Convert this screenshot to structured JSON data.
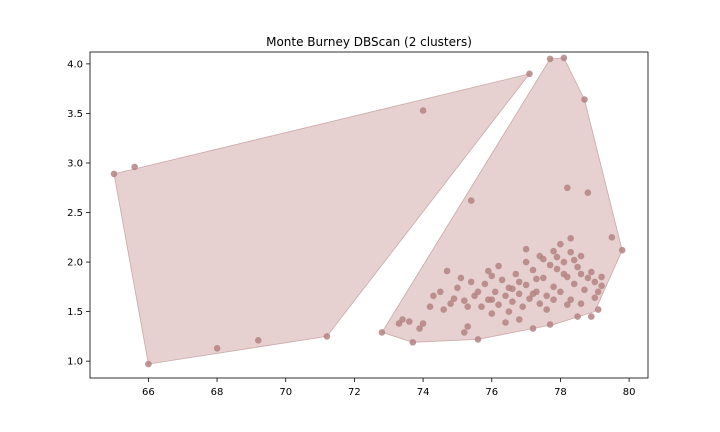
{
  "chart_data": {
    "type": "scatter",
    "title": "Monte Burney DBScan (2 clusters)",
    "xlabel": "",
    "ylabel": "",
    "xlim": [
      64.3,
      80.55
    ],
    "ylim": [
      0.83,
      4.12
    ],
    "xticks": [
      66,
      68,
      70,
      72,
      74,
      76,
      78,
      80
    ],
    "yticks": [
      1.0,
      1.5,
      2.0,
      2.5,
      3.0,
      3.5,
      4.0
    ],
    "xtick_labels": [
      "66",
      "68",
      "70",
      "72",
      "74",
      "76",
      "78",
      "80"
    ],
    "ytick_labels": [
      "1.0",
      "1.5",
      "2.0",
      "2.5",
      "3.0",
      "3.5",
      "4.0"
    ],
    "grid": false,
    "legend": "none",
    "colors": {
      "point": "#b48282",
      "hull_fill": "#c89696",
      "hull_stroke": "#b48282"
    },
    "clusters": [
      {
        "hull": [
          [
            65.0,
            2.89
          ],
          [
            77.1,
            3.9
          ],
          [
            71.2,
            1.25
          ],
          [
            66.0,
            0.97
          ]
        ],
        "points": [
          [
            65.0,
            2.89
          ],
          [
            65.6,
            2.96
          ],
          [
            66.0,
            0.97
          ],
          [
            68.0,
            1.13
          ],
          [
            69.2,
            1.21
          ],
          [
            71.2,
            1.25
          ],
          [
            74.0,
            3.53
          ],
          [
            77.1,
            3.9
          ]
        ]
      },
      {
        "hull": [
          [
            72.8,
            1.29
          ],
          [
            73.7,
            1.19
          ],
          [
            75.6,
            1.22
          ],
          [
            77.8,
            1.37
          ],
          [
            79.0,
            1.5
          ],
          [
            79.8,
            2.12
          ],
          [
            78.7,
            3.64
          ],
          [
            78.1,
            4.06
          ],
          [
            77.7,
            4.05
          ]
        ],
        "points": [
          [
            77.7,
            4.05
          ],
          [
            78.1,
            4.06
          ],
          [
            78.7,
            3.64
          ],
          [
            75.4,
            2.62
          ],
          [
            78.2,
            2.75
          ],
          [
            78.8,
            2.7
          ],
          [
            79.8,
            2.12
          ],
          [
            79.5,
            2.25
          ],
          [
            72.8,
            1.29
          ],
          [
            73.3,
            1.38
          ],
          [
            73.4,
            1.42
          ],
          [
            73.6,
            1.4
          ],
          [
            73.7,
            1.19
          ],
          [
            73.9,
            1.33
          ],
          [
            74.0,
            1.38
          ],
          [
            74.2,
            1.55
          ],
          [
            74.3,
            1.66
          ],
          [
            74.7,
            1.91
          ],
          [
            75.6,
            1.22
          ],
          [
            75.3,
            1.35
          ],
          [
            75.2,
            1.29
          ],
          [
            76.0,
            1.48
          ],
          [
            76.4,
            1.39
          ],
          [
            76.8,
            1.42
          ],
          [
            77.2,
            1.33
          ],
          [
            77.7,
            1.37
          ],
          [
            78.5,
            1.45
          ],
          [
            78.9,
            1.45
          ],
          [
            79.1,
            1.52
          ],
          [
            77.0,
            2.13
          ],
          [
            77.5,
            2.03
          ],
          [
            78.0,
            2.18
          ],
          [
            78.3,
            2.24
          ],
          [
            77.8,
            1.62
          ],
          [
            78.2,
            1.57
          ],
          [
            78.6,
            1.88
          ],
          [
            79.0,
            1.64
          ],
          [
            79.2,
            1.76
          ],
          [
            74.5,
            1.7
          ],
          [
            74.8,
            1.58
          ],
          [
            75.0,
            1.74
          ],
          [
            75.2,
            1.61
          ],
          [
            75.5,
            1.66
          ],
          [
            75.7,
            1.55
          ],
          [
            75.8,
            1.78
          ],
          [
            76.0,
            1.62
          ],
          [
            76.1,
            1.7
          ],
          [
            76.2,
            1.57
          ],
          [
            76.3,
            1.82
          ],
          [
            76.4,
            1.66
          ],
          [
            76.5,
            1.74
          ],
          [
            76.6,
            1.6
          ],
          [
            76.7,
            1.88
          ],
          [
            76.8,
            1.68
          ],
          [
            76.9,
            1.55
          ],
          [
            77.0,
            1.77
          ],
          [
            77.1,
            1.63
          ],
          [
            77.2,
            1.92
          ],
          [
            77.3,
            1.7
          ],
          [
            77.4,
            1.58
          ],
          [
            77.5,
            1.84
          ],
          [
            77.6,
            1.66
          ],
          [
            77.7,
            1.97
          ],
          [
            77.8,
            1.75
          ],
          [
            77.9,
            2.05
          ],
          [
            78.0,
            1.7
          ],
          [
            78.1,
            2.0
          ],
          [
            78.2,
            1.85
          ],
          [
            78.3,
            2.1
          ],
          [
            78.4,
            1.78
          ],
          [
            78.5,
            1.95
          ],
          [
            78.6,
            2.06
          ],
          [
            78.7,
            1.72
          ],
          [
            78.8,
            1.84
          ],
          [
            78.9,
            1.9
          ],
          [
            79.0,
            1.8
          ],
          [
            79.2,
            1.85
          ],
          [
            75.9,
            1.91
          ],
          [
            76.2,
            1.96
          ],
          [
            75.1,
            1.84
          ],
          [
            74.9,
            1.63
          ],
          [
            74.6,
            1.52
          ],
          [
            75.4,
            1.8
          ],
          [
            76.0,
            1.86
          ],
          [
            77.0,
            2.0
          ],
          [
            77.4,
            2.06
          ],
          [
            77.9,
            1.93
          ],
          [
            78.3,
            1.62
          ],
          [
            77.6,
            1.52
          ],
          [
            76.5,
            1.5
          ],
          [
            75.3,
            1.55
          ],
          [
            75.9,
            1.62
          ],
          [
            76.8,
            1.8
          ],
          [
            77.3,
            1.83
          ],
          [
            77.8,
            2.11
          ],
          [
            78.1,
            1.88
          ],
          [
            78.6,
            1.58
          ],
          [
            79.1,
            1.7
          ],
          [
            78.4,
            2.02
          ],
          [
            77.2,
            1.68
          ],
          [
            76.6,
            1.73
          ],
          [
            75.6,
            1.7
          ]
        ]
      }
    ]
  }
}
